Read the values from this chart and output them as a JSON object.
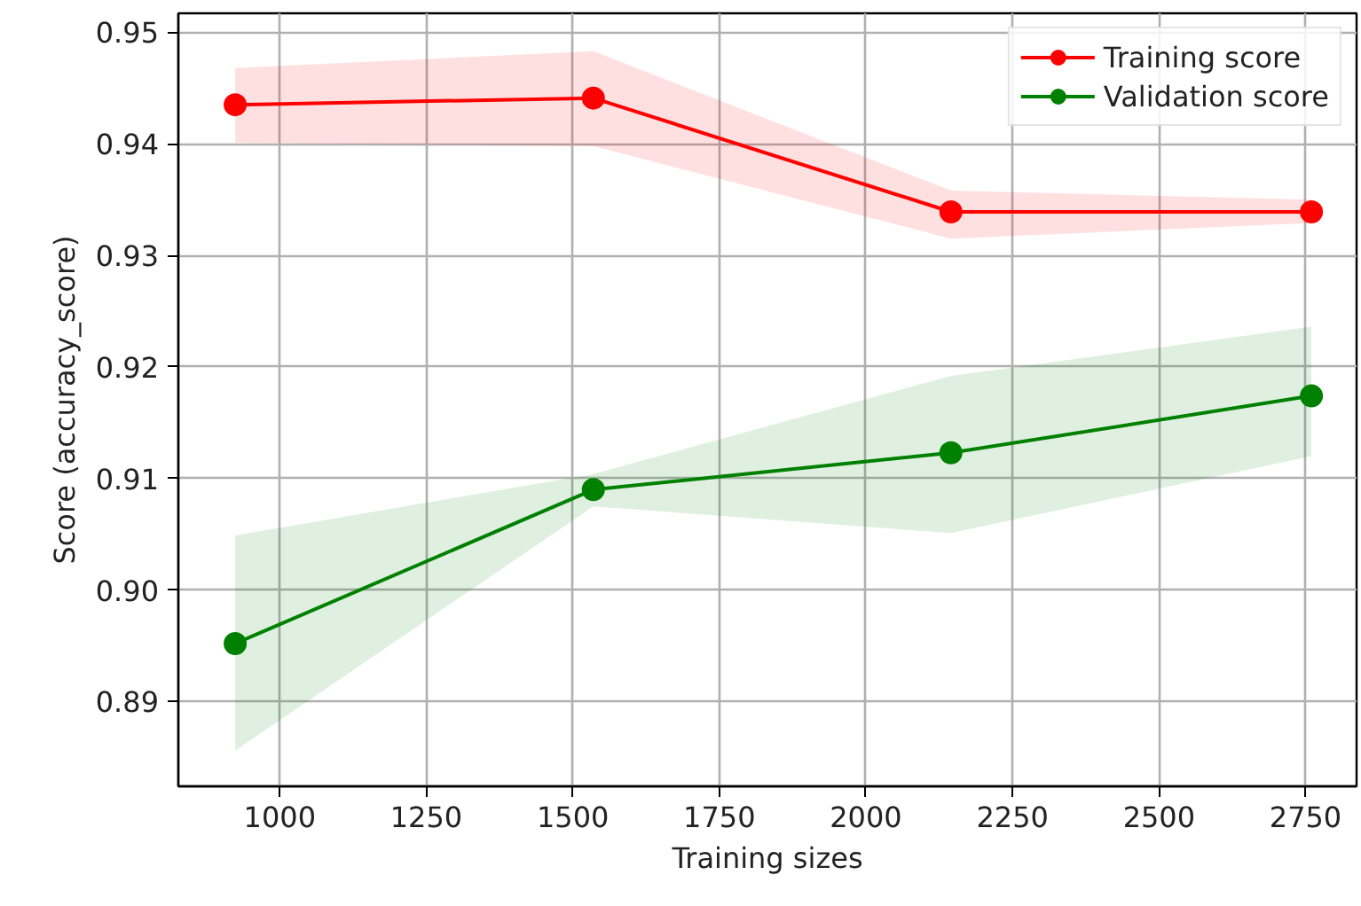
{
  "chart_data": {
    "type": "line",
    "xlabel": "Training sizes",
    "ylabel": "Score (accuracy_score)",
    "x": [
      924,
      1535,
      2145,
      2760
    ],
    "xlim": [
      827,
      2837
    ],
    "ylim": [
      0.8824,
      0.9517
    ],
    "xticks": [
      1000,
      1250,
      1500,
      1750,
      2000,
      2250,
      2500,
      2750
    ],
    "yticks": [
      0.89,
      {
        "value": 0.9,
        "label": "0.90"
      },
      0.91,
      0.92,
      0.93,
      0.94,
      0.95
    ],
    "series": [
      {
        "name": "Training score",
        "color": "#ff0000",
        "values": [
          0.9435,
          0.9441,
          0.9339,
          0.9339
        ],
        "lower": [
          0.9401,
          0.9398,
          0.9315,
          0.9329
        ],
        "upper": [
          0.9468,
          0.9483,
          0.9358,
          0.935
        ]
      },
      {
        "name": "Validation score",
        "color": "#008000",
        "values": [
          0.8952,
          0.909,
          0.9123,
          0.9174
        ],
        "lower": [
          0.8856,
          0.9075,
          0.9051,
          0.912
        ],
        "upper": [
          0.9049,
          0.9104,
          0.9192,
          0.9236
        ]
      }
    ],
    "grid": true,
    "legend": "top right",
    "marker": "circle",
    "line_style": "solid"
  }
}
